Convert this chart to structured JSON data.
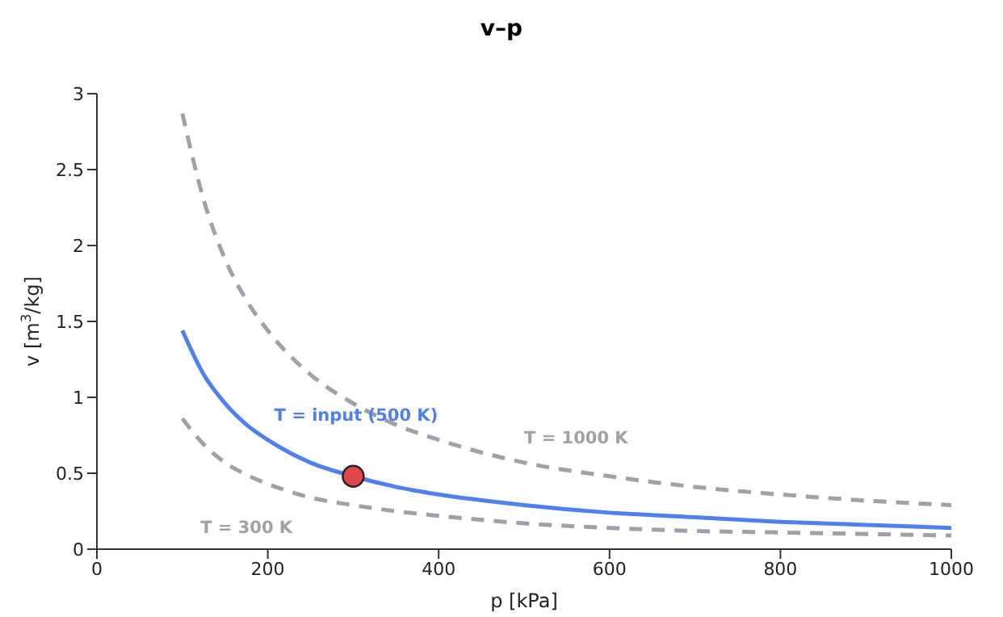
{
  "chart_data": {
    "type": "line",
    "title": "v–p",
    "xlabel": "p [kPa]",
    "ylabel": "v [m$^{3}$/kg]",
    "xlim": [
      0,
      1000
    ],
    "xticks": [
      0,
      200,
      400,
      600,
      800,
      1000
    ],
    "ylim": [
      0,
      3
    ],
    "yticks": [
      0,
      0.5,
      1,
      1.5,
      2,
      2.5,
      3
    ],
    "grid": false,
    "marker": "none",
    "x": [
      100,
      125,
      150,
      175,
      200,
      250,
      300,
      350,
      400,
      500,
      600,
      700,
      800,
      900,
      1000
    ],
    "series": [
      {
        "name": "T = 1000 K",
        "color": "#9fa1a8",
        "line_style": "dashed",
        "values": [
          2.87,
          2.3,
          1.91,
          1.64,
          1.44,
          1.15,
          0.96,
          0.82,
          0.72,
          0.57,
          0.48,
          0.41,
          0.36,
          0.32,
          0.29
        ]
      },
      {
        "name": "T = input (500 K)",
        "color": "#4f80ee",
        "line_style": "solid",
        "values": [
          1.44,
          1.15,
          0.96,
          0.82,
          0.72,
          0.57,
          0.48,
          0.41,
          0.36,
          0.29,
          0.24,
          0.21,
          0.18,
          0.16,
          0.14
        ]
      },
      {
        "name": "T = 300 K",
        "color": "#9fa1a8",
        "line_style": "dashed",
        "values": [
          0.86,
          0.69,
          0.57,
          0.49,
          0.43,
          0.34,
          0.29,
          0.25,
          0.22,
          0.17,
          0.14,
          0.12,
          0.11,
          0.1,
          0.09
        ]
      },
      {
        "type": "scatter",
        "color": "#e0474c",
        "marker": "circle",
        "x": [
          300
        ],
        "values": [
          0.48
        ]
      }
    ]
  }
}
